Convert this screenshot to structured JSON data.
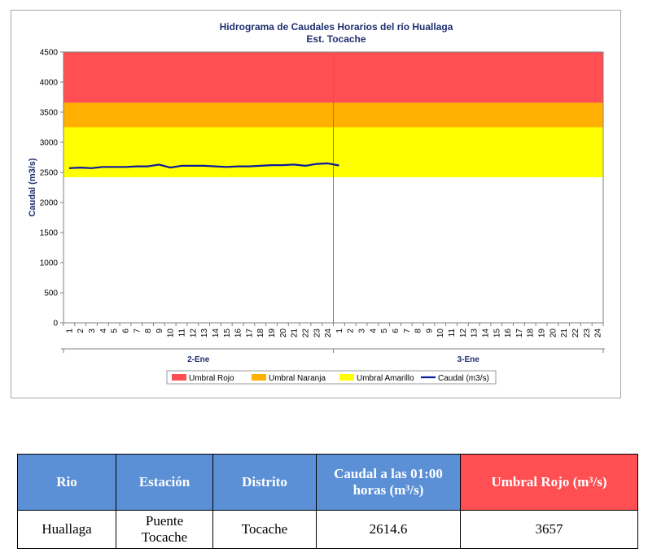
{
  "chart_data": {
    "type": "line",
    "title": "Hidrograma de Caudales Horarios del río Huallaga",
    "subtitle": "Est. Tocache",
    "ylabel": "Caudal  (m3/s)",
    "ylim": [
      0,
      4500
    ],
    "yticks": [
      0,
      500,
      1000,
      1500,
      2000,
      2500,
      3000,
      3500,
      4000,
      4500
    ],
    "x_hour_labels": [
      "1",
      "2",
      "3",
      "4",
      "5",
      "6",
      "7",
      "8",
      "9",
      "10",
      "11",
      "12",
      "13",
      "14",
      "15",
      "16",
      "17",
      "18",
      "19",
      "20",
      "21",
      "22",
      "23",
      "24",
      "1",
      "2",
      "3",
      "4",
      "5",
      "6",
      "7",
      "8",
      "9",
      "10",
      "11",
      "12",
      "13",
      "14",
      "15",
      "16",
      "17",
      "18",
      "19",
      "20",
      "21",
      "22",
      "23",
      "24"
    ],
    "day_groups": [
      {
        "label": "2-Ene",
        "hours": 24
      },
      {
        "label": "3-Ene",
        "hours": 24
      }
    ],
    "bands": [
      {
        "name": "Umbral Rojo",
        "from": 3657,
        "to": 4500,
        "color": "#ff4f52"
      },
      {
        "name": "Umbral Naranja",
        "from": 3250,
        "to": 3657,
        "color": "#ffb000"
      },
      {
        "name": "Umbral Amarillo",
        "from": 2420,
        "to": 3250,
        "color": "#ffff00"
      }
    ],
    "series": [
      {
        "name": "Caudal (m3/s)",
        "color": "#0b1a9c",
        "values": [
          2570,
          2580,
          2570,
          2590,
          2590,
          2590,
          2600,
          2600,
          2630,
          2580,
          2610,
          2610,
          2610,
          2600,
          2590,
          2600,
          2600,
          2610,
          2620,
          2620,
          2630,
          2610,
          2640,
          2650,
          2614.6
        ]
      }
    ],
    "legend": [
      "Umbral Rojo",
      "Umbral Naranja",
      "Umbral Amarillo",
      "Caudal (m3/s)"
    ],
    "legend_position": "bottom",
    "grid": false
  },
  "table": {
    "headers": [
      "Rio",
      "Estación",
      "Distrito",
      "Caudal a las 01:00 horas (m³/s)",
      "Umbral Rojo (m³/s)"
    ],
    "row": [
      "Huallaga",
      "Puente Tocache",
      "Tocache",
      "2614.6",
      "3657"
    ]
  },
  "colors": {
    "header_blue": "#5b8fd6",
    "header_red": "#ff4f52"
  }
}
